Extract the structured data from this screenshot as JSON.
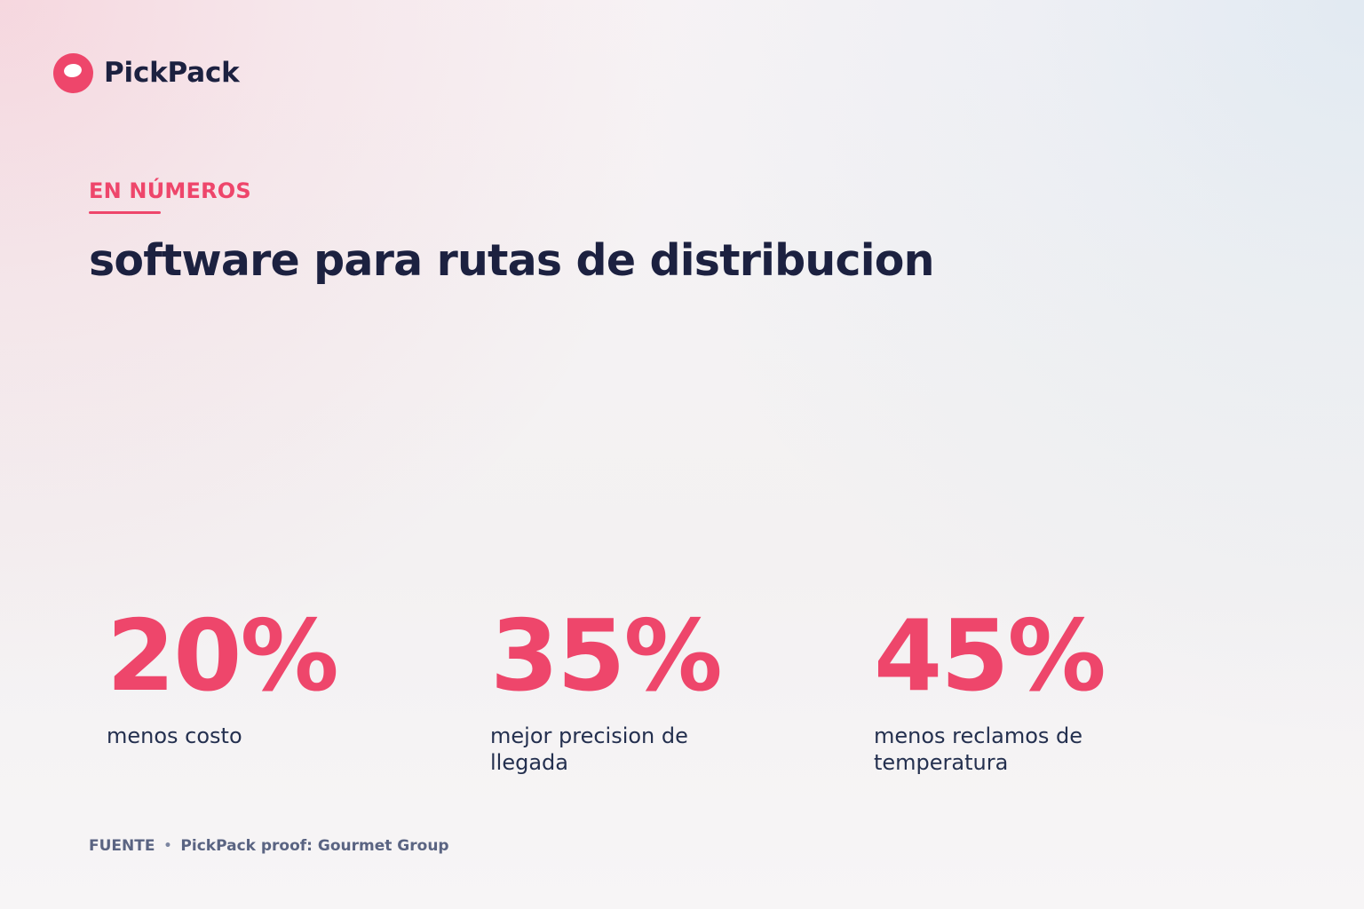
{
  "brand": {
    "name": "PickPack",
    "logo_icon": "pickpack-logo-icon",
    "accent_color": "#ee466b",
    "text_color": "#1c2140"
  },
  "header": {
    "eyebrow": "EN NÚMEROS",
    "title": "software para rutas de distribucion"
  },
  "stats": [
    {
      "value": "20%",
      "label": "menos costo"
    },
    {
      "value": "35%",
      "label": "mejor precision de llegada"
    },
    {
      "value": "45%",
      "label": "menos reclamos de temperatura"
    }
  ],
  "footer": {
    "source_label": "FUENTE",
    "separator": "•",
    "source_text": "PickPack proof: Gourmet Group"
  }
}
